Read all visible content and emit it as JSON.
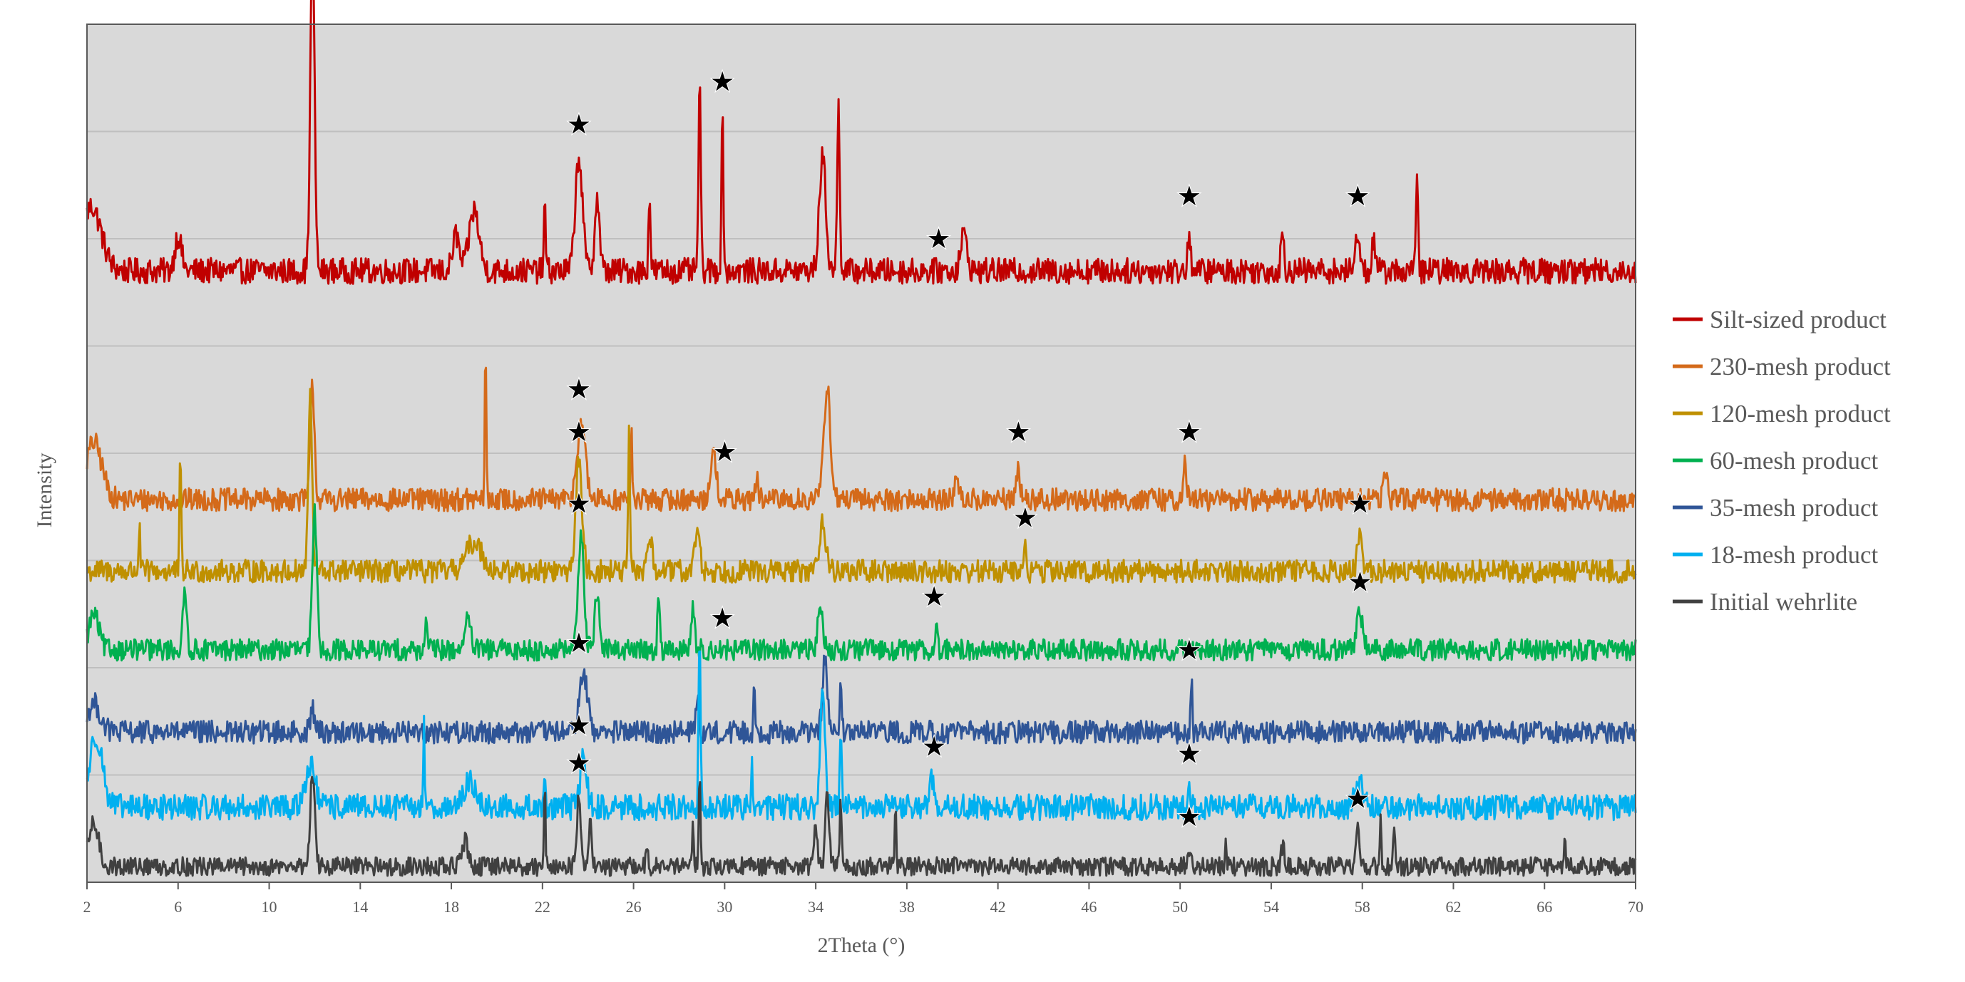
{
  "chart_data": {
    "type": "line",
    "xlabel": "2Theta (°)",
    "ylabel": "Intensity",
    "xlim": [
      2,
      70
    ],
    "x_ticks": [
      "2",
      "6",
      "10",
      "14",
      "18",
      "22",
      "26",
      "30",
      "34",
      "38",
      "42",
      "46",
      "50",
      "54",
      "58",
      "62",
      "66",
      "70"
    ],
    "grid": "horizontal",
    "plot_background": "#d9d9d9",
    "legend_placement": "right",
    "series": [
      {
        "name": "Silt-sized product",
        "color": "#c00000",
        "baseline": 8.55,
        "noise": 0.18,
        "peaks": [
          [
            2.2,
            0.9,
            0.6
          ],
          [
            6.0,
            0.5,
            0.2
          ],
          [
            11.9,
            4.6,
            0.13
          ],
          [
            18.2,
            0.5,
            0.2
          ],
          [
            19.0,
            0.85,
            0.3
          ],
          [
            22.1,
            0.9,
            0.06
          ],
          [
            23.6,
            1.6,
            0.22
          ],
          [
            24.4,
            1.0,
            0.15
          ],
          [
            26.7,
            1.1,
            0.06
          ],
          [
            28.9,
            2.6,
            0.07
          ],
          [
            29.9,
            2.2,
            0.06
          ],
          [
            34.3,
            1.6,
            0.2
          ],
          [
            35.0,
            2.3,
            0.08
          ],
          [
            40.5,
            0.5,
            0.2
          ],
          [
            50.4,
            0.6,
            0.08
          ],
          [
            54.5,
            0.5,
            0.1
          ],
          [
            57.8,
            0.6,
            0.12
          ],
          [
            58.5,
            0.45,
            0.1
          ],
          [
            60.4,
            1.45,
            0.06
          ]
        ],
        "stars": [
          23.6,
          29.9,
          39.4,
          50.4,
          57.8
        ]
      },
      {
        "name": "230-mesh product",
        "color": "#d46a1a",
        "baseline": 5.35,
        "noise": 0.16,
        "peaks": [
          [
            2.3,
            0.8,
            0.5
          ],
          [
            11.9,
            1.6,
            0.13
          ],
          [
            19.5,
            2.0,
            0.05
          ],
          [
            23.7,
            1.1,
            0.25
          ],
          [
            25.9,
            1.0,
            0.05
          ],
          [
            29.5,
            0.6,
            0.2
          ],
          [
            31.4,
            0.4,
            0.06
          ],
          [
            34.5,
            1.6,
            0.2
          ],
          [
            40.2,
            0.4,
            0.1
          ],
          [
            42.9,
            0.5,
            0.1
          ],
          [
            50.2,
            0.5,
            0.1
          ],
          [
            59.0,
            0.45,
            0.12
          ]
        ],
        "stars": [
          23.6,
          30.0,
          42.9,
          50.4
        ]
      },
      {
        "name": "120-mesh product",
        "color": "#bf9000",
        "baseline": 4.35,
        "noise": 0.16,
        "peaks": [
          [
            4.3,
            0.6,
            0.05
          ],
          [
            6.1,
            1.6,
            0.05
          ],
          [
            11.8,
            2.4,
            0.12
          ],
          [
            19.0,
            0.4,
            0.5
          ],
          [
            23.6,
            1.5,
            0.2
          ],
          [
            25.8,
            2.0,
            0.05
          ],
          [
            26.7,
            0.5,
            0.15
          ],
          [
            28.8,
            0.6,
            0.15
          ],
          [
            34.3,
            0.7,
            0.2
          ],
          [
            43.2,
            0.3,
            0.08
          ],
          [
            57.9,
            0.5,
            0.15
          ]
        ],
        "stars": [
          23.6,
          43.2,
          57.9
        ]
      },
      {
        "name": "60-mesh product",
        "color": "#00b050",
        "baseline": 3.25,
        "noise": 0.15,
        "peaks": [
          [
            2.3,
            0.5,
            0.3
          ],
          [
            6.3,
            0.8,
            0.12
          ],
          [
            12.0,
            1.9,
            0.14
          ],
          [
            16.9,
            0.6,
            0.05
          ],
          [
            18.7,
            0.4,
            0.2
          ],
          [
            23.7,
            1.6,
            0.18
          ],
          [
            24.4,
            0.8,
            0.15
          ],
          [
            27.1,
            0.9,
            0.06
          ],
          [
            28.6,
            0.6,
            0.1
          ],
          [
            34.2,
            0.6,
            0.15
          ],
          [
            39.3,
            0.3,
            0.06
          ],
          [
            57.9,
            0.5,
            0.2
          ]
        ],
        "stars": [
          23.6,
          29.9,
          39.2,
          57.9
        ]
      },
      {
        "name": "35-mesh product",
        "color": "#2f5597",
        "baseline": 2.1,
        "noise": 0.16,
        "peaks": [
          [
            2.3,
            0.4,
            0.4
          ],
          [
            11.9,
            0.3,
            0.15
          ],
          [
            23.8,
            0.8,
            0.25
          ],
          [
            28.8,
            0.5,
            0.1
          ],
          [
            31.3,
            0.7,
            0.04
          ],
          [
            34.4,
            1.0,
            0.15
          ],
          [
            35.1,
            0.6,
            0.06
          ],
          [
            50.5,
            0.7,
            0.05
          ]
        ],
        "stars": [
          23.6,
          50.4
        ]
      },
      {
        "name": "18-mesh product",
        "color": "#00b0f0",
        "baseline": 1.05,
        "noise": 0.18,
        "peaks": [
          [
            2.4,
            1.0,
            0.4
          ],
          [
            11.8,
            0.6,
            0.3
          ],
          [
            16.8,
            1.3,
            0.04
          ],
          [
            18.8,
            0.4,
            0.3
          ],
          [
            22.1,
            0.5,
            0.05
          ],
          [
            23.8,
            0.7,
            0.2
          ],
          [
            28.9,
            2.6,
            0.06
          ],
          [
            31.2,
            0.6,
            0.04
          ],
          [
            34.3,
            1.6,
            0.15
          ],
          [
            35.1,
            1.1,
            0.06
          ],
          [
            39.1,
            0.4,
            0.15
          ],
          [
            50.4,
            0.3,
            0.1
          ],
          [
            57.9,
            0.3,
            0.3
          ]
        ],
        "stars": [
          23.6,
          39.2,
          50.4
        ]
      },
      {
        "name": "Initial wehrlite",
        "color": "#404040",
        "baseline": 0.22,
        "noise": 0.13,
        "peaks": [
          [
            2.3,
            0.6,
            0.3
          ],
          [
            11.9,
            1.3,
            0.14
          ],
          [
            18.6,
            0.35,
            0.2
          ],
          [
            22.1,
            1.1,
            0.05
          ],
          [
            23.6,
            1.0,
            0.12
          ],
          [
            24.1,
            0.7,
            0.1
          ],
          [
            26.6,
            0.35,
            0.06
          ],
          [
            28.6,
            0.6,
            0.05
          ],
          [
            28.9,
            1.2,
            0.06
          ],
          [
            34.0,
            0.6,
            0.1
          ],
          [
            34.5,
            1.0,
            0.12
          ],
          [
            35.1,
            1.0,
            0.05
          ],
          [
            37.5,
            0.9,
            0.04
          ],
          [
            50.4,
            0.25,
            0.1
          ],
          [
            52.0,
            0.3,
            0.05
          ],
          [
            54.5,
            0.3,
            0.1
          ],
          [
            57.8,
            0.5,
            0.1
          ],
          [
            58.8,
            0.6,
            0.05
          ],
          [
            59.4,
            0.5,
            0.05
          ],
          [
            66.9,
            0.5,
            0.04
          ]
        ],
        "stars": [
          23.6,
          50.4,
          57.8
        ]
      }
    ]
  }
}
